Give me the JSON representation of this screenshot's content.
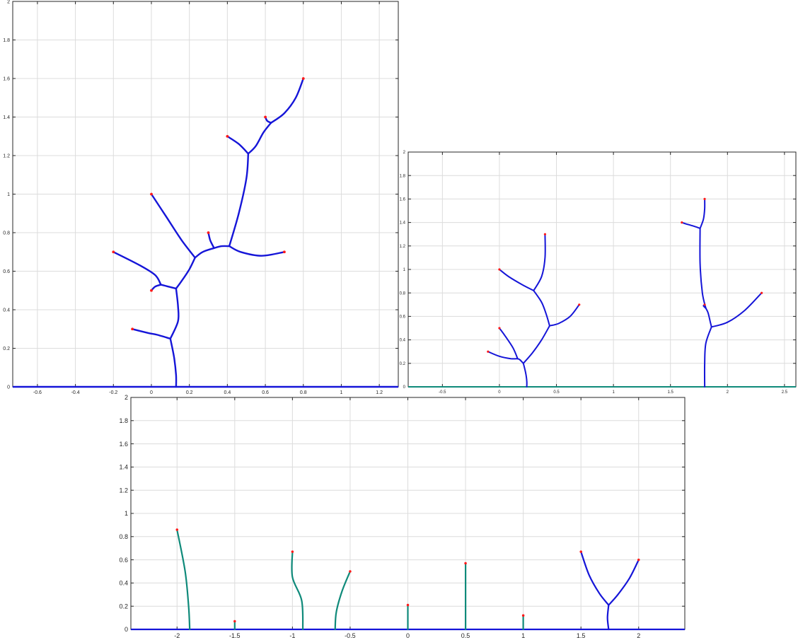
{
  "chart_data": [
    {
      "type": "line",
      "title": "",
      "xlabel": "",
      "ylabel": "",
      "xlim": [
        -0.73,
        1.3
      ],
      "ylim": [
        0,
        2
      ],
      "x_ticks": [
        "-0.6",
        "-0.4",
        "-0.2",
        "0",
        "0.2",
        "0.4",
        "0.6",
        "0.8",
        "1",
        "1.2"
      ],
      "y_ticks": [
        "0",
        "0.2",
        "0.4",
        "0.6",
        "0.8",
        "1",
        "1.2",
        "1.4",
        "1.6",
        "1.8",
        "2"
      ],
      "grid": true,
      "colors": {
        "branch": "#1515d8",
        "stem": "#1515d8",
        "tip": "#ff1a1a",
        "ground": "#1515d8"
      },
      "ground": {
        "x": [
          -0.73,
          1.3
        ],
        "y": [
          0,
          0
        ]
      },
      "series": [
        {
          "x": [
            0.13,
            0.13,
            0.12,
            0.1
          ],
          "y": [
            0,
            0.06,
            0.15,
            0.25
          ]
        },
        {
          "x": [
            0.1,
            0.03,
            -0.02,
            -0.1
          ],
          "y": [
            0.25,
            0.27,
            0.28,
            0.3
          ]
        },
        {
          "x": [
            0.1,
            0.14,
            0.14,
            0.13
          ],
          "y": [
            0.25,
            0.34,
            0.42,
            0.51
          ]
        },
        {
          "x": [
            0.13,
            0.09,
            0.05
          ],
          "y": [
            0.51,
            0.52,
            0.53
          ]
        },
        {
          "x": [
            0.05,
            0.02,
            0.0
          ],
          "y": [
            0.53,
            0.52,
            0.5
          ]
        },
        {
          "x": [
            0.05,
            0.02,
            -0.06,
            -0.2
          ],
          "y": [
            0.53,
            0.58,
            0.63,
            0.7
          ]
        },
        {
          "x": [
            0.13,
            0.16,
            0.2,
            0.23
          ],
          "y": [
            0.51,
            0.55,
            0.61,
            0.67
          ]
        },
        {
          "x": [
            0.23,
            0.16,
            0.08,
            0.0
          ],
          "y": [
            0.67,
            0.76,
            0.88,
            1.0
          ]
        },
        {
          "x": [
            0.23,
            0.27,
            0.33
          ],
          "y": [
            0.67,
            0.7,
            0.72
          ]
        },
        {
          "x": [
            0.33,
            0.31,
            0.3
          ],
          "y": [
            0.72,
            0.76,
            0.8
          ]
        },
        {
          "x": [
            0.33,
            0.37,
            0.41
          ],
          "y": [
            0.72,
            0.73,
            0.73
          ]
        },
        {
          "x": [
            0.41,
            0.47,
            0.58,
            0.7
          ],
          "y": [
            0.73,
            0.7,
            0.68,
            0.7
          ]
        },
        {
          "x": [
            0.41,
            0.46,
            0.5,
            0.51
          ],
          "y": [
            0.73,
            0.9,
            1.08,
            1.21
          ]
        },
        {
          "x": [
            0.51,
            0.46,
            0.4
          ],
          "y": [
            1.21,
            1.26,
            1.3
          ]
        },
        {
          "x": [
            0.51,
            0.55,
            0.59,
            0.63
          ],
          "y": [
            1.21,
            1.25,
            1.32,
            1.37
          ]
        },
        {
          "x": [
            0.63,
            0.61,
            0.6
          ],
          "y": [
            1.37,
            1.38,
            1.4
          ]
        },
        {
          "x": [
            0.63,
            0.7,
            0.76,
            0.8
          ],
          "y": [
            1.37,
            1.42,
            1.5,
            1.6
          ]
        }
      ],
      "tips": [
        {
          "x": -0.1,
          "y": 0.3
        },
        {
          "x": 0.0,
          "y": 0.5
        },
        {
          "x": -0.2,
          "y": 0.7
        },
        {
          "x": 0.0,
          "y": 1.0
        },
        {
          "x": 0.3,
          "y": 0.8
        },
        {
          "x": 0.7,
          "y": 0.7
        },
        {
          "x": 0.4,
          "y": 1.3
        },
        {
          "x": 0.6,
          "y": 1.4
        },
        {
          "x": 0.8,
          "y": 1.6
        }
      ]
    },
    {
      "type": "line",
      "title": "",
      "xlabel": "",
      "ylabel": "",
      "xlim": [
        -0.8,
        2.6
      ],
      "ylim": [
        0,
        2
      ],
      "x_ticks": [
        "-0.5",
        "0",
        "0.5",
        "1",
        "1.5",
        "2",
        "2.5"
      ],
      "y_ticks": [
        "0",
        "0.2",
        "0.4",
        "0.6",
        "0.8",
        "1",
        "1.2",
        "1.4",
        "1.6",
        "1.8",
        "2"
      ],
      "grid": true,
      "colors": {
        "branch": "#1515d8",
        "stem": "#1515d8",
        "tip": "#ff1a1a",
        "ground": "#0f8a7a"
      },
      "ground": {
        "x": [
          -0.8,
          2.6
        ],
        "y": [
          0,
          0
        ]
      },
      "series": [
        {
          "x": [
            0.24,
            0.24,
            0.23,
            0.21
          ],
          "y": [
            0,
            0.05,
            0.12,
            0.2
          ]
        },
        {
          "x": [
            0.21,
            0.2,
            0.18,
            0.16
          ],
          "y": [
            0.2,
            0.21,
            0.23,
            0.24
          ]
        },
        {
          "x": [
            0.16,
            0.1,
            0.0,
            -0.1
          ],
          "y": [
            0.24,
            0.24,
            0.26,
            0.3
          ]
        },
        {
          "x": [
            0.16,
            0.12,
            0.06,
            0.0
          ],
          "y": [
            0.24,
            0.33,
            0.42,
            0.5
          ]
        },
        {
          "x": [
            0.21,
            0.29,
            0.37,
            0.44
          ],
          "y": [
            0.2,
            0.29,
            0.4,
            0.52
          ]
        },
        {
          "x": [
            0.44,
            0.52,
            0.62,
            0.7
          ],
          "y": [
            0.52,
            0.54,
            0.6,
            0.7
          ]
        },
        {
          "x": [
            0.44,
            0.41,
            0.37,
            0.3
          ],
          "y": [
            0.52,
            0.62,
            0.72,
            0.82
          ]
        },
        {
          "x": [
            0.3,
            0.2,
            0.08,
            0.0
          ],
          "y": [
            0.82,
            0.87,
            0.94,
            1.0
          ]
        },
        {
          "x": [
            0.3,
            0.37,
            0.4,
            0.4
          ],
          "y": [
            0.82,
            0.94,
            1.1,
            1.3
          ]
        },
        {
          "x": [
            1.8,
            1.8,
            1.81,
            1.86
          ],
          "y": [
            0,
            0.2,
            0.37,
            0.51
          ]
        },
        {
          "x": [
            1.86,
            1.85,
            1.83,
            1.81
          ],
          "y": [
            0.51,
            0.55,
            0.63,
            0.67
          ]
        },
        {
          "x": [
            1.81,
            1.79,
            1.8
          ],
          "y": [
            0.67,
            0.69,
            0.7
          ]
        },
        {
          "x": [
            1.81,
            1.78,
            1.76,
            1.76
          ],
          "y": [
            0.67,
            0.8,
            1.05,
            1.35
          ]
        },
        {
          "x": [
            1.76,
            1.7,
            1.63,
            1.6
          ],
          "y": [
            1.35,
            1.37,
            1.39,
            1.4
          ]
        },
        {
          "x": [
            1.76,
            1.79,
            1.8,
            1.8
          ],
          "y": [
            1.35,
            1.43,
            1.52,
            1.6
          ]
        },
        {
          "x": [
            1.86,
            2.0,
            2.15,
            2.3
          ],
          "y": [
            0.51,
            0.55,
            0.65,
            0.8
          ]
        }
      ],
      "tips": [
        {
          "x": -0.1,
          "y": 0.3
        },
        {
          "x": 0.0,
          "y": 0.5
        },
        {
          "x": 0.7,
          "y": 0.7
        },
        {
          "x": 0.0,
          "y": 1.0
        },
        {
          "x": 0.4,
          "y": 1.3
        },
        {
          "x": 1.8,
          "y": 0.7
        },
        {
          "x": 1.6,
          "y": 1.4
        },
        {
          "x": 1.8,
          "y": 1.6
        },
        {
          "x": 2.3,
          "y": 0.8
        }
      ]
    },
    {
      "type": "line",
      "title": "",
      "xlabel": "",
      "ylabel": "",
      "xlim": [
        -2.4,
        2.4
      ],
      "ylim": [
        0,
        2
      ],
      "x_ticks": [
        "-2",
        "-1.5",
        "-1",
        "-0.5",
        "0",
        "0.5",
        "1",
        "1.5",
        "2"
      ],
      "y_ticks": [
        "0",
        "0.2",
        "0.4",
        "0.6",
        "0.8",
        "1",
        "1.2",
        "1.4",
        "1.6",
        "1.8",
        "2"
      ],
      "grid": true,
      "colors": {
        "branch": "#1515d8",
        "stem": "#0f8a7a",
        "tip": "#ff1a1a",
        "ground": "#1515d8"
      },
      "ground": {
        "x": [
          -2.4,
          2.4
        ],
        "y": [
          0,
          0
        ]
      },
      "series": [
        {
          "x": [
            -1.89,
            -1.9,
            -1.93,
            -2.0
          ],
          "y": [
            0,
            0.2,
            0.5,
            0.86
          ],
          "color": "stem"
        },
        {
          "x": [
            -1.5,
            -1.5
          ],
          "y": [
            0,
            0.07
          ],
          "color": "stem"
        },
        {
          "x": [
            -0.91,
            -0.92,
            -1.0,
            -1.0
          ],
          "y": [
            0,
            0.25,
            0.45,
            0.67
          ],
          "color": "stem"
        },
        {
          "x": [
            -0.63,
            -0.62,
            -0.57,
            -0.5
          ],
          "y": [
            0,
            0.15,
            0.33,
            0.5
          ],
          "color": "stem"
        },
        {
          "x": [
            0.0,
            0.0
          ],
          "y": [
            0,
            0.21
          ],
          "color": "stem"
        },
        {
          "x": [
            0.5,
            0.5
          ],
          "y": [
            0,
            0.57
          ],
          "color": "stem"
        },
        {
          "x": [
            1.0,
            1.0
          ],
          "y": [
            0,
            0.12
          ],
          "color": "stem"
        },
        {
          "x": [
            1.74,
            1.73,
            1.74
          ],
          "y": [
            0,
            0.1,
            0.21
          ],
          "color": "branch"
        },
        {
          "x": [
            1.74,
            1.66,
            1.57,
            1.5
          ],
          "y": [
            0.21,
            0.31,
            0.47,
            0.67
          ],
          "color": "branch"
        },
        {
          "x": [
            1.74,
            1.82,
            1.92,
            2.0
          ],
          "y": [
            0.21,
            0.3,
            0.44,
            0.6
          ],
          "color": "branch"
        }
      ],
      "tips": [
        {
          "x": -2.0,
          "y": 0.86
        },
        {
          "x": -1.5,
          "y": 0.07
        },
        {
          "x": -1.0,
          "y": 0.67
        },
        {
          "x": -0.5,
          "y": 0.5
        },
        {
          "x": 0.0,
          "y": 0.21
        },
        {
          "x": 0.5,
          "y": 0.57
        },
        {
          "x": 1.0,
          "y": 0.12
        },
        {
          "x": 1.5,
          "y": 0.67
        },
        {
          "x": 2.0,
          "y": 0.6
        }
      ]
    }
  ]
}
